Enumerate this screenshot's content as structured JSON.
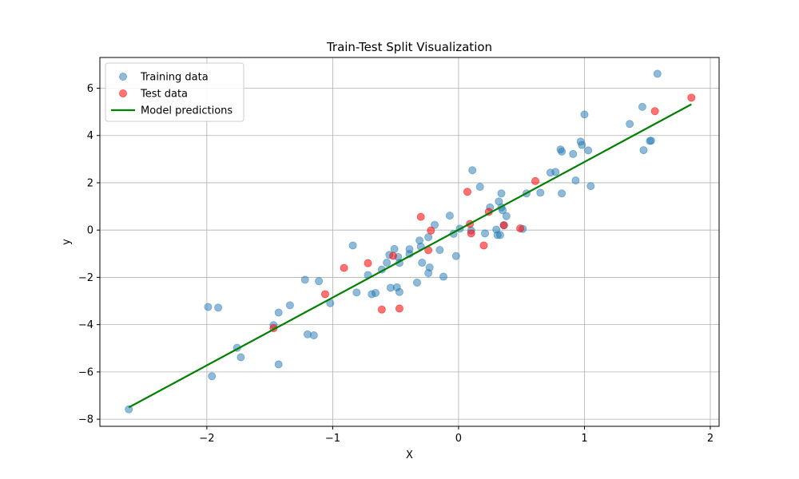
{
  "chart_data": {
    "type": "scatter",
    "title": "Train-Test Split Visualization",
    "xlabel": "X",
    "ylabel": "y",
    "xlim": [
      -2.85,
      2.07
    ],
    "ylim": [
      -8.3,
      7.3
    ],
    "xticks": [
      -2,
      -1,
      0,
      1,
      2
    ],
    "yticks": [
      -8,
      -6,
      -4,
      -2,
      0,
      2,
      4,
      6
    ],
    "grid": true,
    "legend_position": "top-left",
    "series": [
      {
        "name": "Training data",
        "kind": "scatter",
        "color": "#1f77b4",
        "alpha": 0.5,
        "points": [
          [
            -2.62,
            -7.58
          ],
          [
            -1.99,
            -3.25
          ],
          [
            -1.96,
            -6.18
          ],
          [
            -1.91,
            -3.28
          ],
          [
            -1.76,
            -4.98
          ],
          [
            -1.73,
            -5.38
          ],
          [
            -1.47,
            -4.02
          ],
          [
            -1.43,
            -3.49
          ],
          [
            -1.43,
            -5.68
          ],
          [
            -1.34,
            -3.18
          ],
          [
            -1.22,
            -2.1
          ],
          [
            -1.2,
            -4.41
          ],
          [
            -1.15,
            -4.45
          ],
          [
            -1.11,
            -2.16
          ],
          [
            -1.02,
            -3.09
          ],
          [
            -0.84,
            -0.65
          ],
          [
            -0.81,
            -2.64
          ],
          [
            -0.72,
            -1.9
          ],
          [
            -0.69,
            -2.71
          ],
          [
            -0.66,
            -2.66
          ],
          [
            -0.61,
            -1.67
          ],
          [
            -0.57,
            -1.38
          ],
          [
            -0.55,
            -1.05
          ],
          [
            -0.54,
            -2.44
          ],
          [
            -0.51,
            -0.8
          ],
          [
            -0.49,
            -2.42
          ],
          [
            -0.48,
            -1.14
          ],
          [
            -0.47,
            -1.39
          ],
          [
            -0.47,
            -2.62
          ],
          [
            -0.39,
            -0.81
          ],
          [
            -0.39,
            -1.01
          ],
          [
            -0.33,
            -2.22
          ],
          [
            -0.31,
            -0.44
          ],
          [
            -0.3,
            -0.7
          ],
          [
            -0.29,
            -1.38
          ],
          [
            -0.24,
            -0.3
          ],
          [
            -0.24,
            -1.82
          ],
          [
            -0.23,
            -1.58
          ],
          [
            -0.19,
            0.22
          ],
          [
            -0.15,
            -0.84
          ],
          [
            -0.12,
            -1.97
          ],
          [
            -0.07,
            0.61
          ],
          [
            -0.04,
            -0.16
          ],
          [
            -0.02,
            -1.1
          ],
          [
            0.01,
            0.06
          ],
          [
            0.1,
            -0.02
          ],
          [
            0.11,
            2.53
          ],
          [
            0.17,
            1.83
          ],
          [
            0.21,
            -0.14
          ],
          [
            0.25,
            0.96
          ],
          [
            0.3,
            0.02
          ],
          [
            0.31,
            -0.21
          ],
          [
            0.32,
            1.21
          ],
          [
            0.33,
            -0.21
          ],
          [
            0.34,
            1.55
          ],
          [
            0.34,
            0.96
          ],
          [
            0.35,
            0.84
          ],
          [
            0.36,
            0.21
          ],
          [
            0.38,
            0.59
          ],
          [
            0.51,
            0.05
          ],
          [
            0.54,
            1.55
          ],
          [
            0.65,
            1.58
          ],
          [
            0.73,
            2.43
          ],
          [
            0.77,
            2.46
          ],
          [
            0.81,
            3.41
          ],
          [
            0.82,
            3.32
          ],
          [
            0.82,
            1.55
          ],
          [
            0.91,
            3.22
          ],
          [
            0.93,
            2.1
          ],
          [
            0.97,
            3.74
          ],
          [
            0.98,
            3.6
          ],
          [
            1.0,
            4.89
          ],
          [
            1.03,
            3.37
          ],
          [
            1.05,
            1.86
          ],
          [
            1.36,
            4.49
          ],
          [
            1.46,
            5.21
          ],
          [
            1.47,
            3.38
          ],
          [
            1.52,
            3.77
          ],
          [
            1.53,
            3.78
          ],
          [
            1.58,
            6.61
          ]
        ]
      },
      {
        "name": "Test data",
        "kind": "scatter",
        "color": "#ff0000",
        "alpha": 0.55,
        "points": [
          [
            -1.47,
            -4.15
          ],
          [
            -1.06,
            -2.71
          ],
          [
            -0.91,
            -1.6
          ],
          [
            -0.72,
            -1.4
          ],
          [
            -0.61,
            -3.36
          ],
          [
            -0.52,
            -1.09
          ],
          [
            -0.47,
            -3.32
          ],
          [
            -0.3,
            0.56
          ],
          [
            -0.24,
            -0.85
          ],
          [
            -0.22,
            -0.02
          ],
          [
            0.07,
            1.62
          ],
          [
            0.09,
            0.26
          ],
          [
            0.1,
            -0.14
          ],
          [
            0.2,
            -0.65
          ],
          [
            0.24,
            0.77
          ],
          [
            0.36,
            0.2
          ],
          [
            0.49,
            0.07
          ],
          [
            0.61,
            2.07
          ],
          [
            1.56,
            5.03
          ],
          [
            1.85,
            5.6
          ]
        ]
      },
      {
        "name": "Model predictions",
        "kind": "line",
        "color": "#008000",
        "points": [
          [
            -2.62,
            -7.5
          ],
          [
            1.85,
            5.32
          ]
        ]
      }
    ]
  }
}
